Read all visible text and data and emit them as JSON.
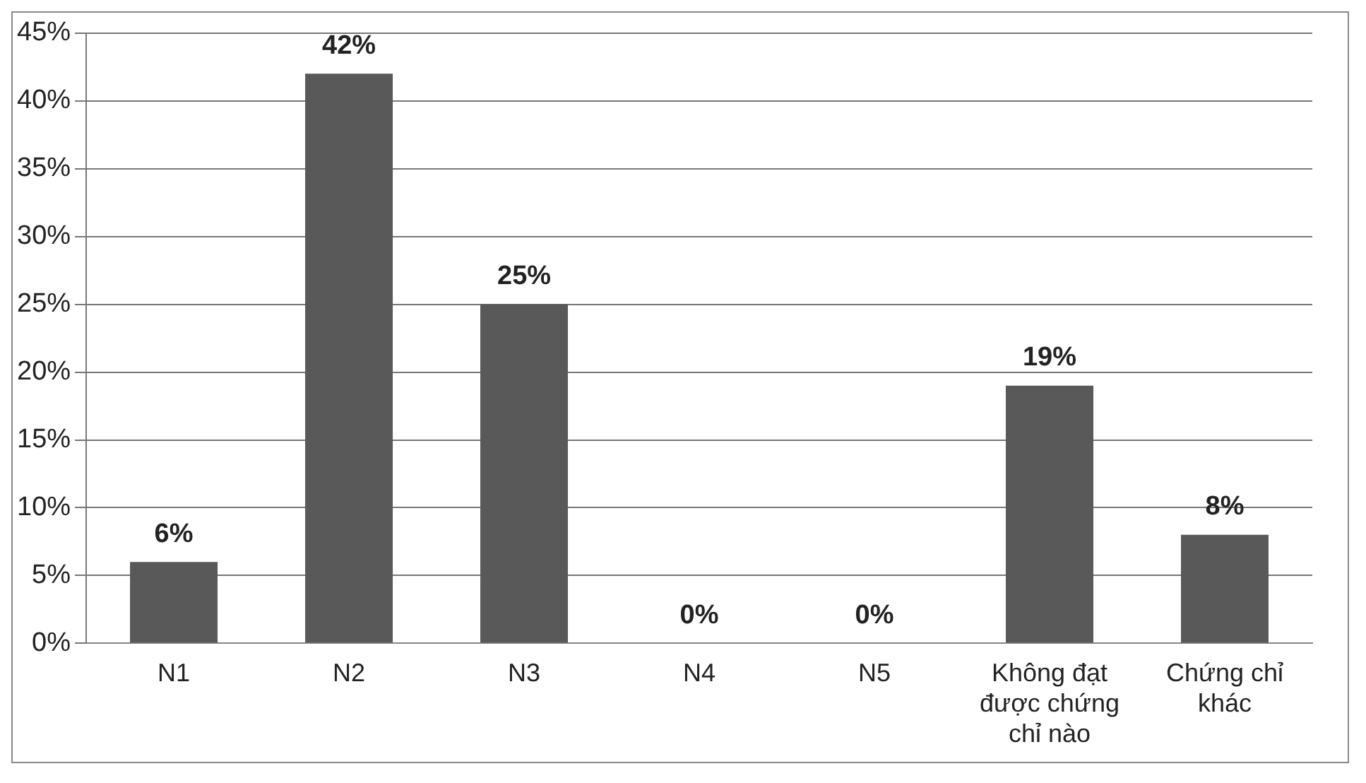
{
  "chart_data": {
    "type": "bar",
    "categories": [
      "N1",
      "N2",
      "N3",
      "N4",
      "N5",
      "Không đạt được chứng chỉ nào",
      "Chứng chỉ khác"
    ],
    "values": [
      6,
      42,
      25,
      0,
      0,
      19,
      8
    ],
    "color": "#595959",
    "ylim": [
      0,
      45
    ],
    "yticks": [
      {
        "value": 0,
        "label": "0%"
      },
      {
        "value": 5,
        "label": "5%"
      },
      {
        "value": 10,
        "label": "10%"
      },
      {
        "value": 15,
        "label": "15%"
      },
      {
        "value": 20,
        "label": "20%"
      },
      {
        "value": 25,
        "label": "25%"
      },
      {
        "value": 30,
        "label": "30%"
      },
      {
        "value": 35,
        "label": "35%"
      },
      {
        "value": 40,
        "label": "40%"
      },
      {
        "value": 45,
        "label": "45%"
      }
    ],
    "grid": "y",
    "legend": false,
    "value_labels": [
      "6%",
      "42%",
      "25%",
      "0%",
      "0%",
      "19%",
      "8%"
    ]
  }
}
